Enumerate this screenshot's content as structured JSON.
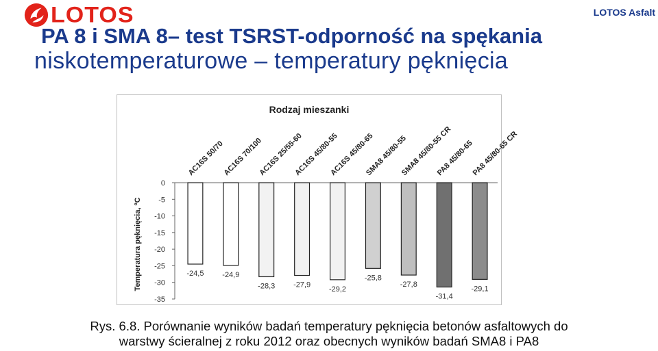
{
  "header": {
    "logo_text": "LOTOS",
    "brand": "LOTOS Asfalt",
    "title_line1": "PA 8 i SMA 8– test TSRST-odporność na spękania",
    "title_line2": "niskotemperaturowe – temperatury pęknięcia"
  },
  "colors": {
    "title": "#1a3a8c",
    "logo_red": "#e2231a"
  },
  "chart_data": {
    "type": "bar",
    "title": "Rodzaj mieszanki",
    "xlabel": "",
    "ylabel": "Temperatura pęknięcia, ºC",
    "categories": [
      "AC16S 50/70",
      "AC16S 70/100",
      "AC16S 25/55-60",
      "AC16S 45/80-55",
      "AC16S 45/80-65",
      "SMA8 45/80-55",
      "SMA8 45/80-55 CR",
      "PA8 45/80-65",
      "PA8 45/80-65 CR"
    ],
    "values": [
      -24.5,
      -24.9,
      -28.3,
      -27.9,
      -29.2,
      -25.8,
      -27.8,
      -31.4,
      -29.1
    ],
    "value_labels": [
      "-24,5",
      "-24,9",
      "-28,3",
      "-27,9",
      "-29,2",
      "-25,8",
      "-27,8",
      "-31,4",
      "-29,1"
    ],
    "bar_colors": [
      "#ffffff",
      "#ffffff",
      "#f2f2f2",
      "#f2f2f2",
      "#f2f2f2",
      "#d0d0d0",
      "#bfbfbf",
      "#707070",
      "#8c8c8c"
    ],
    "yticks": [
      0,
      -5,
      -10,
      -15,
      -20,
      -25,
      -30,
      -35
    ],
    "ylim": [
      -35,
      0
    ],
    "x_axis_position": "top",
    "grid": false,
    "legend": "none"
  },
  "caption": {
    "line1": "Rys. 6.8. Porównanie wyników badań temperatury pęknięcia betonów asfaltowych do",
    "line2": "warstwy ścieralnej z roku 2012 oraz obecnych wyników badań SMA8 i PA8"
  }
}
